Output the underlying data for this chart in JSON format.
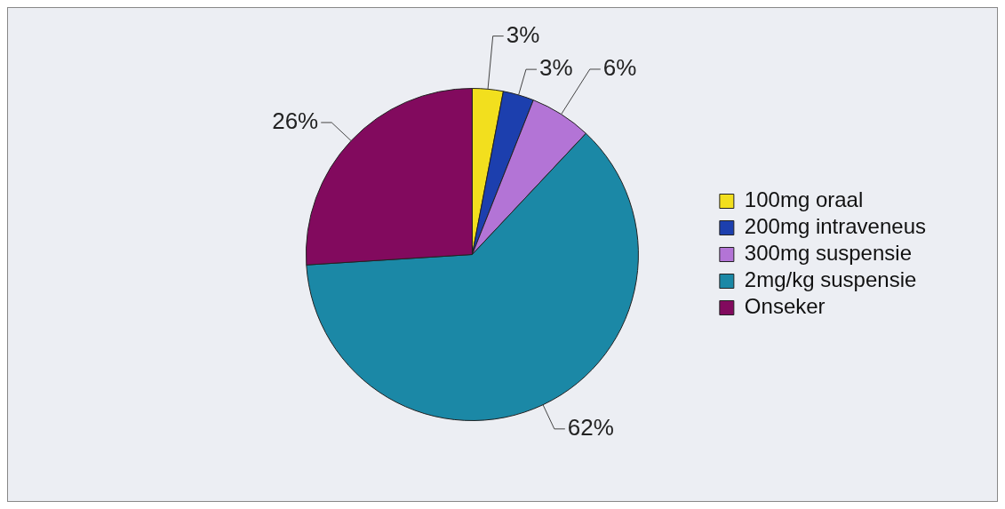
{
  "chart_data": {
    "type": "pie",
    "categories": [
      "100mg oraal",
      "200mg intraveneus",
      "300mg suspensie",
      "2mg/kg suspensie",
      "Onseker"
    ],
    "values": [
      3,
      3,
      6,
      62,
      26
    ],
    "colors": [
      "#f2df1e",
      "#1c3fae",
      "#b374d6",
      "#1b88a6",
      "#820a5e"
    ],
    "value_labels": [
      "3%",
      "3%",
      "6%",
      "62%",
      "26%"
    ],
    "legend": "right"
  }
}
